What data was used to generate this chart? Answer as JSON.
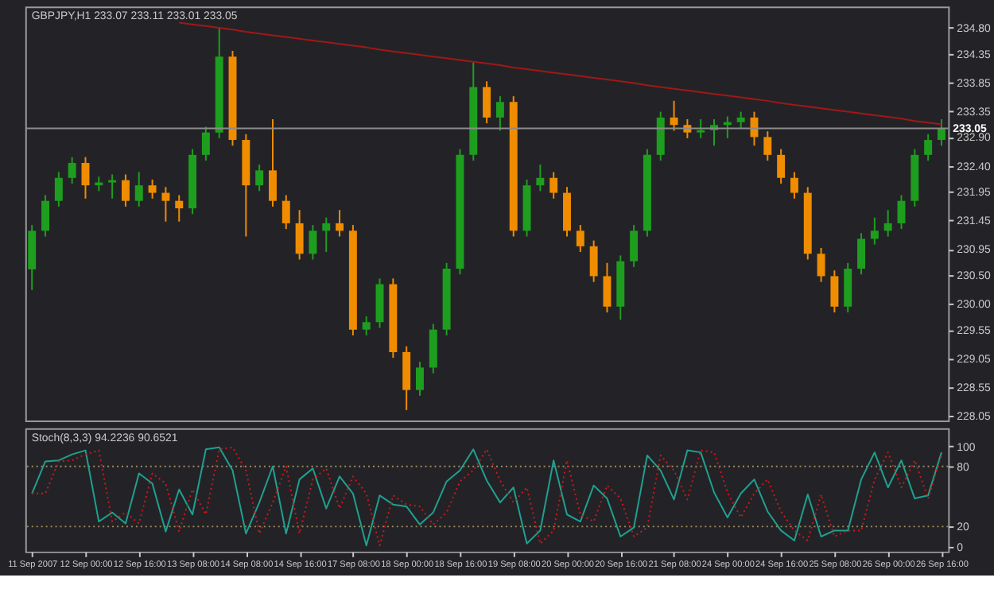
{
  "chart_data": [
    {
      "type": "candlestick",
      "title": "GBPJPY,H1  233.07 233.11 233.01 233.05",
      "categories": [
        null,
        null,
        null,
        null,
        null,
        null,
        null,
        null,
        null,
        null,
        null,
        null,
        null,
        null,
        null,
        null,
        null,
        null,
        null,
        null,
        null,
        null,
        null,
        null,
        null,
        null,
        null,
        null,
        null,
        null,
        null,
        null,
        null,
        null,
        null,
        null,
        null,
        null,
        null,
        null,
        null,
        null,
        null,
        null,
        null,
        null,
        null,
        null,
        null,
        null,
        null,
        null,
        null,
        null,
        null,
        null,
        null,
        null,
        null,
        null,
        null,
        null,
        null,
        null,
        null,
        null,
        null,
        null,
        null
      ],
      "ohlc": [
        [
          230.6,
          231.37,
          230.24,
          231.27
        ],
        [
          231.27,
          231.89,
          231.17,
          231.79
        ],
        [
          231.79,
          232.29,
          231.69,
          232.19
        ],
        [
          232.19,
          232.55,
          232.09,
          232.45
        ],
        [
          232.45,
          232.55,
          231.83,
          232.06
        ],
        [
          232.06,
          232.21,
          231.96,
          232.11
        ],
        [
          232.11,
          232.25,
          231.83,
          232.15
        ],
        [
          232.15,
          232.25,
          231.69,
          231.79
        ],
        [
          231.79,
          232.29,
          231.69,
          232.06
        ],
        [
          232.06,
          232.16,
          231.83,
          231.93
        ],
        [
          231.93,
          232.03,
          231.43,
          231.79
        ],
        [
          231.79,
          231.89,
          231.43,
          231.66
        ],
        [
          231.66,
          232.69,
          231.56,
          232.59
        ],
        [
          232.59,
          233.08,
          232.49,
          232.98
        ],
        [
          232.98,
          234.8,
          232.88,
          234.3
        ],
        [
          234.3,
          234.4,
          232.75,
          232.85
        ],
        [
          232.85,
          232.95,
          231.17,
          232.06
        ],
        [
          232.06,
          232.42,
          231.96,
          232.32
        ],
        [
          232.32,
          233.21,
          231.69,
          231.79
        ],
        [
          231.79,
          231.89,
          231.3,
          231.4
        ],
        [
          231.4,
          231.63,
          230.77,
          230.87
        ],
        [
          230.87,
          231.37,
          230.77,
          231.27
        ],
        [
          231.27,
          231.5,
          230.9,
          231.4
        ],
        [
          231.4,
          231.63,
          231.17,
          231.27
        ],
        [
          231.27,
          231.37,
          229.45,
          229.55
        ],
        [
          229.55,
          229.78,
          229.45,
          229.68
        ],
        [
          229.68,
          230.44,
          229.58,
          230.34
        ],
        [
          230.34,
          230.44,
          229.06,
          229.16
        ],
        [
          229.16,
          229.26,
          228.15,
          228.5
        ],
        [
          228.5,
          228.99,
          228.4,
          228.89
        ],
        [
          228.89,
          229.65,
          228.79,
          229.55
        ],
        [
          229.55,
          230.71,
          229.45,
          230.61
        ],
        [
          230.61,
          232.69,
          230.51,
          232.59
        ],
        [
          232.59,
          234.2,
          232.49,
          233.77
        ],
        [
          233.77,
          233.87,
          233.14,
          233.24
        ],
        [
          233.24,
          233.61,
          233.01,
          233.51
        ],
        [
          233.51,
          233.61,
          231.17,
          231.27
        ],
        [
          231.27,
          232.16,
          231.17,
          232.06
        ],
        [
          232.06,
          232.42,
          231.96,
          232.19
        ],
        [
          232.19,
          232.29,
          231.83,
          231.93
        ],
        [
          231.93,
          232.03,
          231.17,
          231.27
        ],
        [
          231.27,
          231.37,
          230.9,
          231.0
        ],
        [
          231.0,
          231.1,
          230.38,
          230.48
        ],
        [
          230.48,
          230.71,
          229.85,
          229.95
        ],
        [
          229.95,
          230.84,
          229.72,
          230.74
        ],
        [
          230.74,
          231.37,
          230.64,
          231.27
        ],
        [
          231.27,
          232.69,
          231.17,
          232.59
        ],
        [
          232.59,
          233.34,
          232.49,
          233.24
        ],
        [
          233.24,
          233.53,
          233.01,
          233.11
        ],
        [
          233.11,
          233.21,
          232.88,
          232.98
        ],
        [
          232.98,
          233.21,
          232.88,
          233.02
        ],
        [
          233.02,
          233.21,
          232.75,
          233.11
        ],
        [
          233.11,
          233.26,
          232.88,
          233.16
        ],
        [
          233.16,
          233.34,
          233.06,
          233.24
        ],
        [
          233.24,
          233.34,
          232.75,
          232.9
        ],
        [
          232.9,
          233.0,
          232.49,
          232.59
        ],
        [
          232.59,
          232.69,
          232.09,
          232.19
        ],
        [
          232.19,
          232.29,
          231.83,
          231.93
        ],
        [
          231.93,
          232.03,
          230.77,
          230.87
        ],
        [
          230.87,
          230.97,
          230.38,
          230.48
        ],
        [
          230.48,
          230.58,
          229.85,
          229.95
        ],
        [
          229.95,
          230.71,
          229.85,
          230.61
        ],
        [
          230.61,
          231.23,
          230.51,
          231.13
        ],
        [
          231.13,
          231.5,
          231.03,
          231.27
        ],
        [
          231.27,
          231.63,
          231.17,
          231.4
        ],
        [
          231.4,
          231.89,
          231.3,
          231.79
        ],
        [
          231.79,
          232.69,
          231.69,
          232.59
        ],
        [
          232.59,
          232.95,
          232.49,
          232.85
        ],
        [
          232.85,
          233.21,
          232.75,
          233.05
        ]
      ],
      "colors": [
        "#1e9e1e",
        "#1e9e1e",
        "#1e9e1e",
        "#1e9e1e",
        "#f08c00",
        "#1e9e1e",
        "#1e9e1e",
        "#f08c00",
        "#1e9e1e",
        "#f08c00",
        "#f08c00",
        "#f08c00",
        "#1e9e1e",
        "#1e9e1e",
        "#1e9e1e",
        "#f08c00",
        "#f08c00",
        "#1e9e1e",
        "#f08c00",
        "#f08c00",
        "#f08c00",
        "#1e9e1e",
        "#1e9e1e",
        "#f08c00",
        "#f08c00",
        "#1e9e1e",
        "#1e9e1e",
        "#f08c00",
        "#f08c00",
        "#1e9e1e",
        "#1e9e1e",
        "#1e9e1e",
        "#1e9e1e",
        "#1e9e1e",
        "#f08c00",
        "#1e9e1e",
        "#f08c00",
        "#1e9e1e",
        "#1e9e1e",
        "#f08c00",
        "#f08c00",
        "#f08c00",
        "#f08c00",
        "#f08c00",
        "#1e9e1e",
        "#1e9e1e",
        "#1e9e1e",
        "#1e9e1e",
        "#f08c00",
        "#f08c00",
        "#1e9e1e",
        "#1e9e1e",
        "#1e9e1e",
        "#1e9e1e",
        "#f08c00",
        "#f08c00",
        "#f08c00",
        "#f08c00",
        "#f08c00",
        "#f08c00",
        "#f08c00",
        "#1e9e1e",
        "#1e9e1e",
        "#1e9e1e",
        "#1e9e1e",
        "#1e9e1e",
        "#1e9e1e",
        "#1e9e1e",
        "#1e9e1e"
      ],
      "series": [
        {
          "type": "line",
          "color": "#a01818",
          "values": [
            null,
            null,
            null,
            null,
            null,
            null,
            null,
            null,
            null,
            null,
            null,
            234.89,
            234.86,
            234.83,
            234.8,
            234.77,
            234.73,
            234.7,
            234.67,
            234.64,
            234.61,
            234.58,
            234.55,
            234.52,
            234.49,
            234.46,
            234.42,
            234.39,
            234.36,
            234.33,
            234.3,
            234.27,
            234.24,
            234.21,
            234.18,
            234.15,
            234.11,
            234.08,
            234.05,
            234.02,
            233.99,
            233.96,
            233.93,
            233.9,
            233.87,
            233.84,
            233.8,
            233.77,
            233.74,
            233.71,
            233.68,
            233.65,
            233.62,
            233.59,
            233.56,
            233.53,
            233.49,
            233.46,
            233.43,
            233.4,
            233.37,
            233.34,
            233.31,
            233.28,
            233.25,
            233.22,
            233.18,
            233.15,
            233.12
          ]
        }
      ],
      "ref_lines": [
        {
          "axis": "y",
          "value": 233.05,
          "label": "233.05",
          "color": "#8c8c8c"
        }
      ],
      "ylim": [
        227.97,
        235.17
      ],
      "yticks": [
        {
          "value": 228.05,
          "label": "228.05"
        },
        {
          "value": 228.55,
          "label": "228.55"
        },
        {
          "value": 229.05,
          "label": "229.05"
        },
        {
          "value": 229.55,
          "label": "229.55"
        },
        {
          "value": 230.0,
          "label": "230.00"
        },
        {
          "value": 230.5,
          "label": "230.50"
        },
        {
          "value": 230.95,
          "label": "230.95"
        },
        {
          "value": 231.45,
          "label": "231.45"
        },
        {
          "value": 231.95,
          "label": "231.95"
        },
        {
          "value": 232.4,
          "label": "232.40"
        },
        {
          "value": 232.9,
          "label": "232.90"
        },
        {
          "value": 233.35,
          "label": "233.35"
        },
        {
          "value": 233.85,
          "label": "233.85"
        },
        {
          "value": 234.35,
          "label": "234.35"
        },
        {
          "value": 234.8,
          "label": "234.80"
        }
      ],
      "tick_labels": "y"
    },
    {
      "type": "line",
      "title": "Stoch(8,3,3) 94.2236 90.6521",
      "categories": [
        "11 Sep 2007",
        null,
        null,
        null,
        "12 Sep 00:00",
        null,
        null,
        null,
        "12 Sep 16:00",
        null,
        null,
        null,
        "13 Sep 08:00",
        null,
        null,
        null,
        "14 Sep 08:00",
        null,
        null,
        null,
        "14 Sep 16:00",
        null,
        null,
        null,
        "17 Sep 08:00",
        null,
        null,
        null,
        "18 Sep 00:00",
        null,
        null,
        null,
        "18 Sep 16:00",
        null,
        null,
        null,
        "19 Sep 08:00",
        null,
        null,
        null,
        "20 Sep 00:00",
        null,
        null,
        null,
        "20 Sep 16:00",
        null,
        null,
        null,
        "21 Sep 08:00",
        null,
        null,
        null,
        "24 Sep 00:00",
        null,
        null,
        null,
        "24 Sep 16:00",
        null,
        null,
        null,
        "25 Sep 08:00",
        null,
        null,
        null,
        "26 Sep 00:00",
        null,
        null,
        null,
        "26 Sep 16:00"
      ],
      "series": [
        {
          "color": "#20a090",
          "line_style": "solid",
          "values": [
            53,
            85,
            86,
            92,
            96,
            25,
            34,
            23,
            73,
            63,
            15,
            57,
            32,
            97,
            99,
            76,
            13,
            44,
            80,
            13,
            67,
            78,
            38,
            70,
            53,
            1,
            51,
            42,
            40,
            22,
            34,
            65,
            76,
            97,
            66,
            44,
            59,
            3,
            16,
            86,
            32,
            25,
            61,
            48,
            10,
            19,
            91,
            76,
            47,
            96,
            94,
            54,
            29,
            53,
            67,
            35,
            16,
            6,
            52,
            10,
            16,
            16,
            67,
            94,
            59,
            86,
            48,
            51,
            94
          ]
        },
        {
          "color": "#d01818",
          "line_style": "dotted",
          "values": [
            53,
            53,
            85,
            86,
            92,
            96,
            25,
            34,
            23,
            73,
            63,
            15,
            57,
            32,
            97,
            99,
            76,
            13,
            44,
            80,
            13,
            67,
            78,
            38,
            70,
            53,
            1,
            51,
            42,
            40,
            22,
            34,
            65,
            76,
            97,
            66,
            44,
            59,
            3,
            16,
            86,
            32,
            25,
            61,
            48,
            10,
            19,
            91,
            76,
            47,
            96,
            94,
            54,
            29,
            53,
            67,
            35,
            16,
            6,
            52,
            10,
            16,
            16,
            67,
            94,
            59,
            86,
            48,
            91
          ]
        }
      ],
      "ref_lines": [
        {
          "axis": "y",
          "value": 20,
          "color": "#a08c5a",
          "line_style": "dotted"
        },
        {
          "axis": "y",
          "value": 80,
          "color": "#a08c5a",
          "line_style": "dotted"
        }
      ],
      "ylim": [
        -5,
        118
      ],
      "yticks": [
        0,
        20,
        80,
        100
      ]
    }
  ]
}
